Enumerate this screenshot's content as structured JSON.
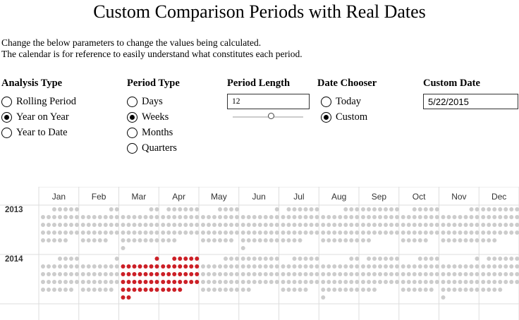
{
  "title": "Custom Comparison Periods with Real Dates",
  "description": {
    "line1": "Change the below parameters to change the values being calculated.",
    "line2": "The calendar is for reference to easily understand what constitutes each period."
  },
  "analysis_type": {
    "label": "Analysis Type",
    "options": [
      "Rolling Period",
      "Year on Year",
      "Year to Date"
    ],
    "selected": "Year on Year"
  },
  "period_type": {
    "label": "Period Type",
    "options": [
      "Days",
      "Weeks",
      "Months",
      "Quarters"
    ],
    "selected": "Weeks"
  },
  "period_length": {
    "label": "Period Length",
    "value": "12",
    "slider_min": 1,
    "slider_max": 52,
    "slider_value": 12
  },
  "date_chooser": {
    "label": "Date Chooser",
    "options": [
      "Today",
      "Custom"
    ],
    "selected": "Custom"
  },
  "custom_date": {
    "label": "Custom Date",
    "value": "5/22/2015"
  },
  "calendar": {
    "months": [
      "Jan",
      "Feb",
      "Mar",
      "Apr",
      "May",
      "Jun",
      "Jul",
      "Aug",
      "Sep",
      "Oct",
      "Nov",
      "Dec"
    ],
    "years": [
      "2013",
      "2014"
    ],
    "colors": {
      "inactive": "#cccccc",
      "highlight": "#cc1f26",
      "grid": "#dddddd"
    },
    "highlight_ranges": [
      {
        "start": "2014-03-29",
        "end": "2014-04-03"
      },
      {
        "start": "2014-04-27",
        "end": "2014-04-30"
      },
      {
        "start": "2014-03-01",
        "end": "2014-04-30"
      }
    ]
  }
}
